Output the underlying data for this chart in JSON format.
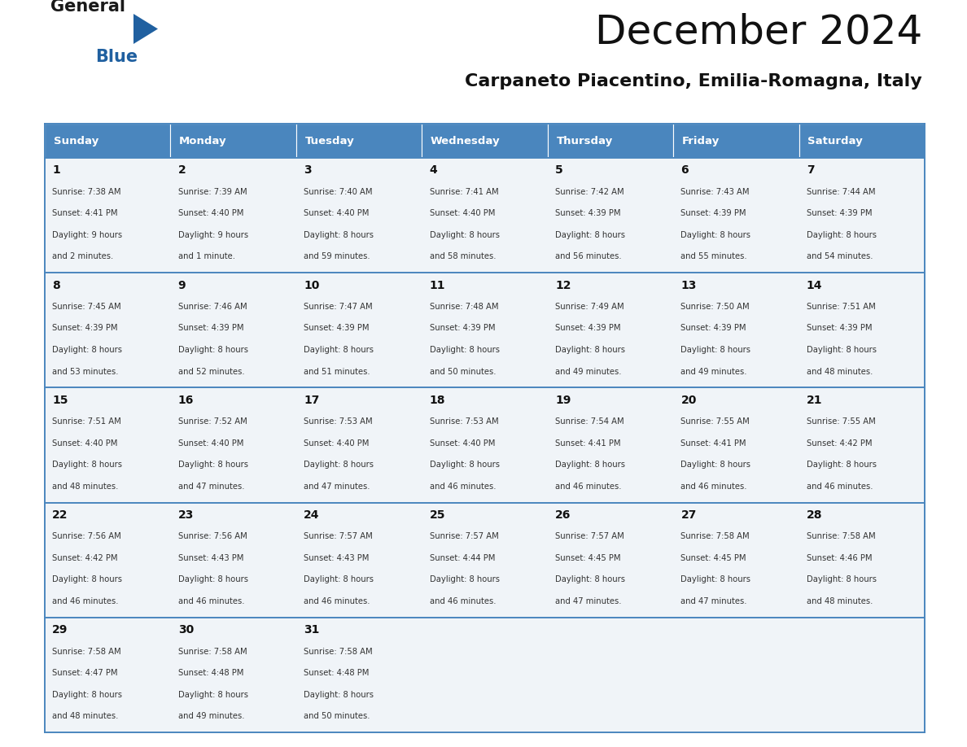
{
  "title": "December 2024",
  "subtitle": "Carpaneto Piacentino, Emilia-Romagna, Italy",
  "header_color": "#4a86be",
  "header_text_color": "#ffffff",
  "days_of_week": [
    "Sunday",
    "Monday",
    "Tuesday",
    "Wednesday",
    "Thursday",
    "Friday",
    "Saturday"
  ],
  "cell_bg_color": "#f0f4f8",
  "border_color": "#4a86be",
  "text_color": "#333333",
  "day_num_color": "#111111",
  "days": [
    {
      "day": 1,
      "col": 0,
      "row": 0,
      "sunrise": "7:38 AM",
      "sunset": "4:41 PM",
      "daylight": "9 hours",
      "daylight2": "and 2 minutes."
    },
    {
      "day": 2,
      "col": 1,
      "row": 0,
      "sunrise": "7:39 AM",
      "sunset": "4:40 PM",
      "daylight": "9 hours",
      "daylight2": "and 1 minute."
    },
    {
      "day": 3,
      "col": 2,
      "row": 0,
      "sunrise": "7:40 AM",
      "sunset": "4:40 PM",
      "daylight": "8 hours",
      "daylight2": "and 59 minutes."
    },
    {
      "day": 4,
      "col": 3,
      "row": 0,
      "sunrise": "7:41 AM",
      "sunset": "4:40 PM",
      "daylight": "8 hours",
      "daylight2": "and 58 minutes."
    },
    {
      "day": 5,
      "col": 4,
      "row": 0,
      "sunrise": "7:42 AM",
      "sunset": "4:39 PM",
      "daylight": "8 hours",
      "daylight2": "and 56 minutes."
    },
    {
      "day": 6,
      "col": 5,
      "row": 0,
      "sunrise": "7:43 AM",
      "sunset": "4:39 PM",
      "daylight": "8 hours",
      "daylight2": "and 55 minutes."
    },
    {
      "day": 7,
      "col": 6,
      "row": 0,
      "sunrise": "7:44 AM",
      "sunset": "4:39 PM",
      "daylight": "8 hours",
      "daylight2": "and 54 minutes."
    },
    {
      "day": 8,
      "col": 0,
      "row": 1,
      "sunrise": "7:45 AM",
      "sunset": "4:39 PM",
      "daylight": "8 hours",
      "daylight2": "and 53 minutes."
    },
    {
      "day": 9,
      "col": 1,
      "row": 1,
      "sunrise": "7:46 AM",
      "sunset": "4:39 PM",
      "daylight": "8 hours",
      "daylight2": "and 52 minutes."
    },
    {
      "day": 10,
      "col": 2,
      "row": 1,
      "sunrise": "7:47 AM",
      "sunset": "4:39 PM",
      "daylight": "8 hours",
      "daylight2": "and 51 minutes."
    },
    {
      "day": 11,
      "col": 3,
      "row": 1,
      "sunrise": "7:48 AM",
      "sunset": "4:39 PM",
      "daylight": "8 hours",
      "daylight2": "and 50 minutes."
    },
    {
      "day": 12,
      "col": 4,
      "row": 1,
      "sunrise": "7:49 AM",
      "sunset": "4:39 PM",
      "daylight": "8 hours",
      "daylight2": "and 49 minutes."
    },
    {
      "day": 13,
      "col": 5,
      "row": 1,
      "sunrise": "7:50 AM",
      "sunset": "4:39 PM",
      "daylight": "8 hours",
      "daylight2": "and 49 minutes."
    },
    {
      "day": 14,
      "col": 6,
      "row": 1,
      "sunrise": "7:51 AM",
      "sunset": "4:39 PM",
      "daylight": "8 hours",
      "daylight2": "and 48 minutes."
    },
    {
      "day": 15,
      "col": 0,
      "row": 2,
      "sunrise": "7:51 AM",
      "sunset": "4:40 PM",
      "daylight": "8 hours",
      "daylight2": "and 48 minutes."
    },
    {
      "day": 16,
      "col": 1,
      "row": 2,
      "sunrise": "7:52 AM",
      "sunset": "4:40 PM",
      "daylight": "8 hours",
      "daylight2": "and 47 minutes."
    },
    {
      "day": 17,
      "col": 2,
      "row": 2,
      "sunrise": "7:53 AM",
      "sunset": "4:40 PM",
      "daylight": "8 hours",
      "daylight2": "and 47 minutes."
    },
    {
      "day": 18,
      "col": 3,
      "row": 2,
      "sunrise": "7:53 AM",
      "sunset": "4:40 PM",
      "daylight": "8 hours",
      "daylight2": "and 46 minutes."
    },
    {
      "day": 19,
      "col": 4,
      "row": 2,
      "sunrise": "7:54 AM",
      "sunset": "4:41 PM",
      "daylight": "8 hours",
      "daylight2": "and 46 minutes."
    },
    {
      "day": 20,
      "col": 5,
      "row": 2,
      "sunrise": "7:55 AM",
      "sunset": "4:41 PM",
      "daylight": "8 hours",
      "daylight2": "and 46 minutes."
    },
    {
      "day": 21,
      "col": 6,
      "row": 2,
      "sunrise": "7:55 AM",
      "sunset": "4:42 PM",
      "daylight": "8 hours",
      "daylight2": "and 46 minutes."
    },
    {
      "day": 22,
      "col": 0,
      "row": 3,
      "sunrise": "7:56 AM",
      "sunset": "4:42 PM",
      "daylight": "8 hours",
      "daylight2": "and 46 minutes."
    },
    {
      "day": 23,
      "col": 1,
      "row": 3,
      "sunrise": "7:56 AM",
      "sunset": "4:43 PM",
      "daylight": "8 hours",
      "daylight2": "and 46 minutes."
    },
    {
      "day": 24,
      "col": 2,
      "row": 3,
      "sunrise": "7:57 AM",
      "sunset": "4:43 PM",
      "daylight": "8 hours",
      "daylight2": "and 46 minutes."
    },
    {
      "day": 25,
      "col": 3,
      "row": 3,
      "sunrise": "7:57 AM",
      "sunset": "4:44 PM",
      "daylight": "8 hours",
      "daylight2": "and 46 minutes."
    },
    {
      "day": 26,
      "col": 4,
      "row": 3,
      "sunrise": "7:57 AM",
      "sunset": "4:45 PM",
      "daylight": "8 hours",
      "daylight2": "and 47 minutes."
    },
    {
      "day": 27,
      "col": 5,
      "row": 3,
      "sunrise": "7:58 AM",
      "sunset": "4:45 PM",
      "daylight": "8 hours",
      "daylight2": "and 47 minutes."
    },
    {
      "day": 28,
      "col": 6,
      "row": 3,
      "sunrise": "7:58 AM",
      "sunset": "4:46 PM",
      "daylight": "8 hours",
      "daylight2": "and 48 minutes."
    },
    {
      "day": 29,
      "col": 0,
      "row": 4,
      "sunrise": "7:58 AM",
      "sunset": "4:47 PM",
      "daylight": "8 hours",
      "daylight2": "and 48 minutes."
    },
    {
      "day": 30,
      "col": 1,
      "row": 4,
      "sunrise": "7:58 AM",
      "sunset": "4:48 PM",
      "daylight": "8 hours",
      "daylight2": "and 49 minutes."
    },
    {
      "day": 31,
      "col": 2,
      "row": 4,
      "sunrise": "7:58 AM",
      "sunset": "4:48 PM",
      "daylight": "8 hours",
      "daylight2": "and 50 minutes."
    }
  ],
  "num_rows": 5,
  "fig_width": 11.88,
  "fig_height": 9.18,
  "dpi": 100
}
